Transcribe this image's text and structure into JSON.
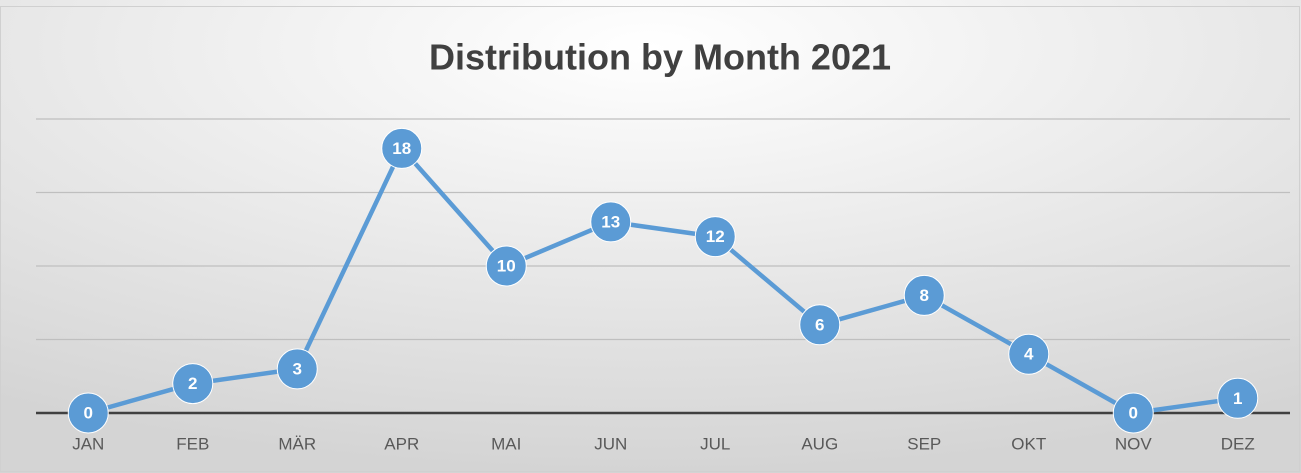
{
  "chart_data": {
    "type": "line",
    "title": "Distribution by Month 2021",
    "categories": [
      "JAN",
      "FEB",
      "MÄR",
      "APR",
      "MAI",
      "JUN",
      "JUL",
      "AUG",
      "SEP",
      "OKT",
      "NOV",
      "DEZ"
    ],
    "values": [
      0,
      2,
      3,
      18,
      10,
      13,
      12,
      6,
      8,
      4,
      0,
      1
    ],
    "color": "#5b9bd5",
    "ylim": [
      0,
      20
    ],
    "yticks": [
      0,
      5,
      10,
      15,
      20
    ],
    "grid": true
  }
}
